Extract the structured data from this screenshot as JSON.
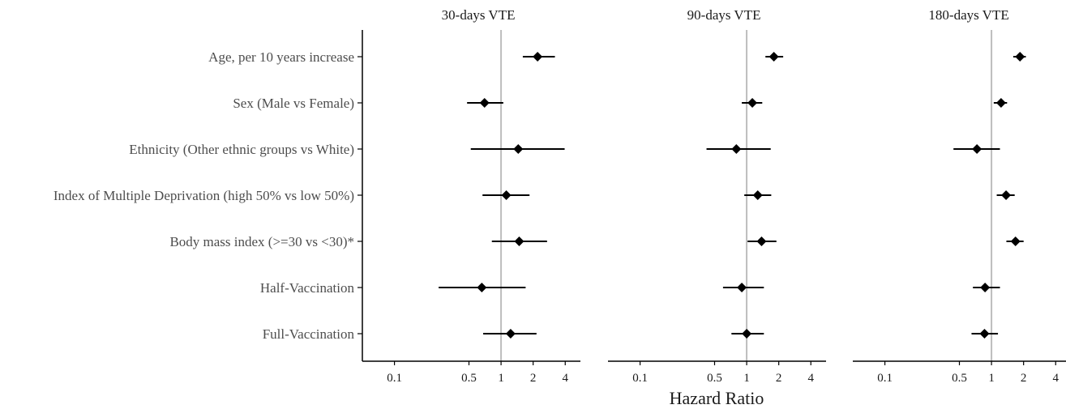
{
  "chart_data": {
    "type": "forest",
    "x_scale": "log",
    "xlabel": "Hazard Ratio",
    "xlim": [
      0.05,
      5
    ],
    "x_ticks": [
      0.1,
      0.5,
      1,
      2,
      4
    ],
    "x_tick_labels": [
      "0.1",
      "0.5",
      "1",
      "2",
      "4"
    ],
    "reference_line": 1,
    "grid": false,
    "rows": [
      "Age, per 10 years increase",
      "Sex (Male vs Female)",
      "Ethnicity (Other ethnic groups vs White)",
      "Index of Multiple Deprivation (high 50% vs low 50%)",
      "Body mass index (>=30 vs <30)*",
      "Half-Vaccination",
      "Full-Vaccination"
    ],
    "panels": [
      {
        "title": "30-days VTE",
        "estimates": [
          {
            "hr": 2.2,
            "lo": 1.6,
            "hi": 3.2
          },
          {
            "hr": 0.7,
            "lo": 0.48,
            "hi": 1.05
          },
          {
            "hr": 1.45,
            "lo": 0.52,
            "hi": 3.95
          },
          {
            "hr": 1.12,
            "lo": 0.67,
            "hi": 1.85
          },
          {
            "hr": 1.48,
            "lo": 0.82,
            "hi": 2.7
          },
          {
            "hr": 0.66,
            "lo": 0.26,
            "hi": 1.7
          },
          {
            "hr": 1.23,
            "lo": 0.68,
            "hi": 2.15
          }
        ]
      },
      {
        "title": "90-days VTE",
        "estimates": [
          {
            "hr": 1.8,
            "lo": 1.5,
            "hi": 2.2
          },
          {
            "hr": 1.13,
            "lo": 0.9,
            "hi": 1.4
          },
          {
            "hr": 0.8,
            "lo": 0.42,
            "hi": 1.68
          },
          {
            "hr": 1.27,
            "lo": 0.95,
            "hi": 1.7
          },
          {
            "hr": 1.38,
            "lo": 1.02,
            "hi": 1.9
          },
          {
            "hr": 0.9,
            "lo": 0.6,
            "hi": 1.45
          },
          {
            "hr": 1.0,
            "lo": 0.72,
            "hi": 1.45
          }
        ]
      },
      {
        "title": "180-days VTE",
        "estimates": [
          {
            "hr": 1.85,
            "lo": 1.6,
            "hi": 2.1
          },
          {
            "hr": 1.23,
            "lo": 1.05,
            "hi": 1.4
          },
          {
            "hr": 0.73,
            "lo": 0.44,
            "hi": 1.2
          },
          {
            "hr": 1.37,
            "lo": 1.12,
            "hi": 1.65
          },
          {
            "hr": 1.68,
            "lo": 1.38,
            "hi": 2.0
          },
          {
            "hr": 0.87,
            "lo": 0.67,
            "hi": 1.2
          },
          {
            "hr": 0.86,
            "lo": 0.65,
            "hi": 1.15
          }
        ]
      }
    ],
    "colors": {
      "marker": "#000000",
      "reference_line": "#bdbdbd",
      "axis": "#000000"
    }
  }
}
